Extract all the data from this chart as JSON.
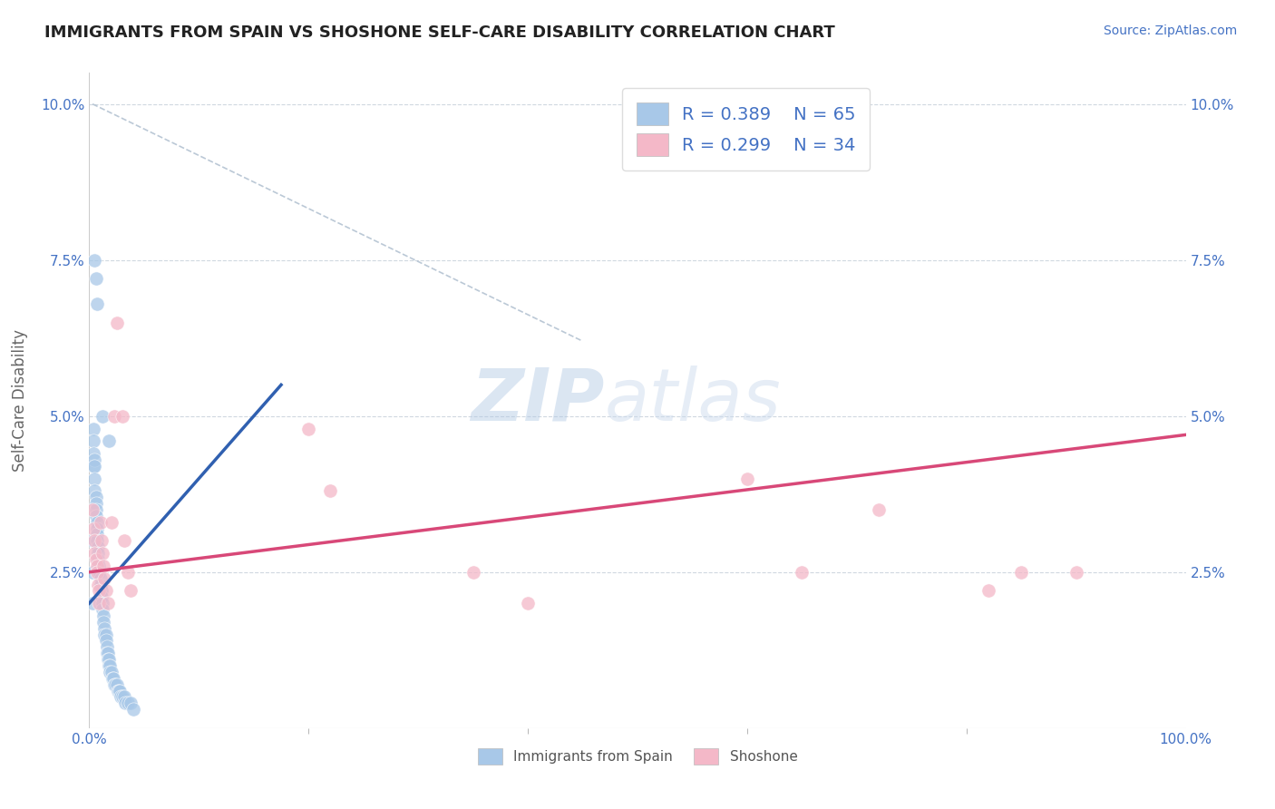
{
  "title": "IMMIGRANTS FROM SPAIN VS SHOSHONE SELF-CARE DISABILITY CORRELATION CHART",
  "source": "Source: ZipAtlas.com",
  "ylabel": "Self-Care Disability",
  "ytick_values": [
    0.0,
    0.025,
    0.05,
    0.075,
    0.1
  ],
  "ytick_labels": [
    "",
    "2.5%",
    "5.0%",
    "7.5%",
    "10.0%"
  ],
  "xtick_values": [
    0.0,
    0.2,
    0.4,
    0.6,
    0.8,
    1.0
  ],
  "xlim": [
    0,
    1.0
  ],
  "ylim": [
    0,
    0.105
  ],
  "legend_r1": "R = 0.389",
  "legend_n1": "N = 65",
  "legend_r2": "R = 0.299",
  "legend_n2": "N = 34",
  "legend_label1": "Immigrants from Spain",
  "legend_label2": "Shoshone",
  "blue_color": "#a8c8e8",
  "pink_color": "#f4b8c8",
  "blue_line_color": "#3060b0",
  "pink_line_color": "#d84878",
  "dash_color": "#aabbcc",
  "watermark_color": "#c8dcf0",
  "blue_scatter_x": [
    0.003,
    0.003,
    0.003,
    0.004,
    0.004,
    0.004,
    0.004,
    0.005,
    0.005,
    0.005,
    0.005,
    0.006,
    0.006,
    0.006,
    0.006,
    0.007,
    0.007,
    0.007,
    0.007,
    0.008,
    0.008,
    0.008,
    0.009,
    0.009,
    0.01,
    0.01,
    0.011,
    0.011,
    0.012,
    0.012,
    0.013,
    0.013,
    0.014,
    0.014,
    0.015,
    0.015,
    0.016,
    0.016,
    0.017,
    0.017,
    0.018,
    0.018,
    0.019,
    0.019,
    0.02,
    0.021,
    0.022,
    0.023,
    0.024,
    0.025,
    0.026,
    0.027,
    0.028,
    0.029,
    0.03,
    0.032,
    0.033,
    0.035,
    0.038,
    0.04,
    0.005,
    0.006,
    0.007,
    0.012,
    0.018
  ],
  "blue_scatter_y": [
    0.03,
    0.025,
    0.02,
    0.048,
    0.046,
    0.044,
    0.042,
    0.043,
    0.042,
    0.04,
    0.038,
    0.037,
    0.036,
    0.035,
    0.034,
    0.033,
    0.032,
    0.031,
    0.03,
    0.029,
    0.028,
    0.027,
    0.026,
    0.025,
    0.024,
    0.023,
    0.022,
    0.021,
    0.02,
    0.019,
    0.018,
    0.017,
    0.016,
    0.015,
    0.015,
    0.014,
    0.013,
    0.012,
    0.012,
    0.011,
    0.011,
    0.01,
    0.01,
    0.009,
    0.009,
    0.008,
    0.008,
    0.007,
    0.007,
    0.007,
    0.006,
    0.006,
    0.006,
    0.005,
    0.005,
    0.005,
    0.004,
    0.004,
    0.004,
    0.003,
    0.075,
    0.072,
    0.068,
    0.05,
    0.046
  ],
  "pink_scatter_x": [
    0.003,
    0.004,
    0.005,
    0.005,
    0.006,
    0.007,
    0.007,
    0.008,
    0.009,
    0.009,
    0.01,
    0.011,
    0.012,
    0.013,
    0.014,
    0.015,
    0.017,
    0.02,
    0.023,
    0.025,
    0.03,
    0.032,
    0.035,
    0.038,
    0.2,
    0.22,
    0.35,
    0.4,
    0.6,
    0.65,
    0.72,
    0.82,
    0.85,
    0.9
  ],
  "pink_scatter_y": [
    0.035,
    0.032,
    0.03,
    0.028,
    0.027,
    0.026,
    0.025,
    0.023,
    0.022,
    0.02,
    0.033,
    0.03,
    0.028,
    0.026,
    0.024,
    0.022,
    0.02,
    0.033,
    0.05,
    0.065,
    0.05,
    0.03,
    0.025,
    0.022,
    0.048,
    0.038,
    0.025,
    0.02,
    0.04,
    0.025,
    0.035,
    0.022,
    0.025,
    0.025
  ],
  "blue_line_x": [
    0.0,
    0.175
  ],
  "blue_line_y": [
    0.02,
    0.055
  ],
  "pink_line_x": [
    0.0,
    1.0
  ],
  "pink_line_y": [
    0.025,
    0.047
  ],
  "dash_line_x": [
    0.003,
    0.45
  ],
  "dash_line_y": [
    0.1,
    0.062
  ]
}
